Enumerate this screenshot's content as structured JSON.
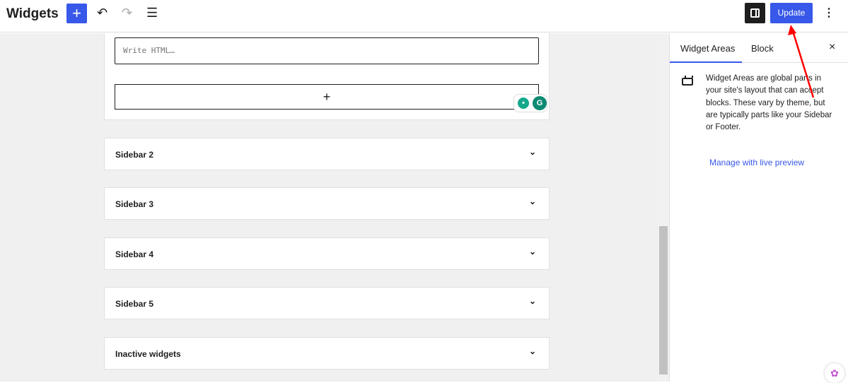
{
  "header": {
    "title": "Widgets",
    "add_label": "+",
    "undo_icon": "undo-icon",
    "redo_icon": "redo-icon",
    "list_view_icon": "list-view-icon",
    "update_label": "Update",
    "more_label": "⋮"
  },
  "editor": {
    "html_placeholder": "Write HTML…",
    "appender_label": "+",
    "areas": [
      {
        "label": "Sidebar 2"
      },
      {
        "label": "Sidebar 3"
      },
      {
        "label": "Sidebar 4"
      },
      {
        "label": "Sidebar 5"
      },
      {
        "label": "Inactive widgets"
      }
    ]
  },
  "sidebar": {
    "tabs": [
      {
        "label": "Widget Areas",
        "active": true
      },
      {
        "label": "Block",
        "active": false
      }
    ],
    "close_label": "×",
    "description": "Widget Areas are global parts in your site's layout that can accept blocks. These vary by theme, but are typically parts like your Sidebar or Footer.",
    "link": "Manage with live preview"
  },
  "colors": {
    "accent": "#3858e9",
    "annotation": "#ff0000"
  }
}
